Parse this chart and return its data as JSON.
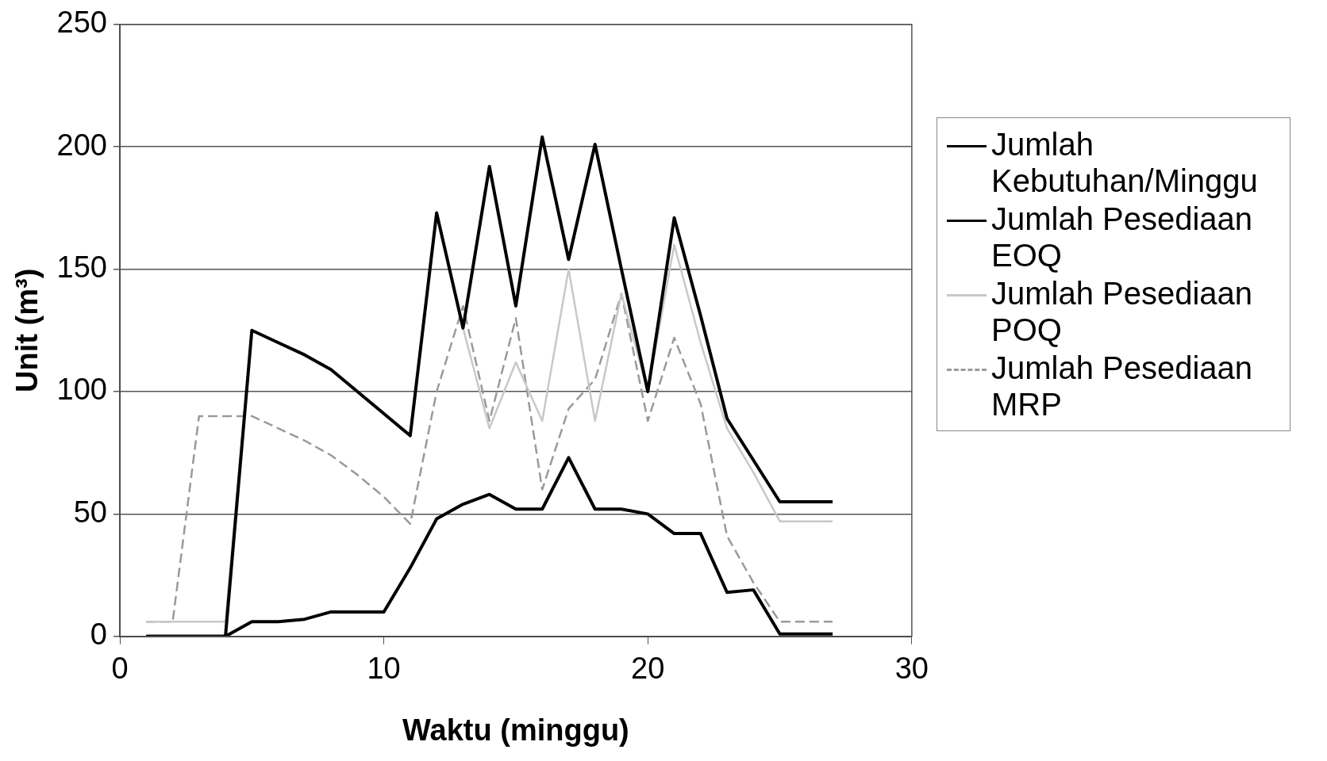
{
  "chart_data": {
    "type": "line",
    "xlabel": "Waktu (minggu)",
    "ylabel": "Unit (m³)",
    "x": [
      1,
      2,
      3,
      4,
      5,
      6,
      7,
      8,
      9,
      10,
      11,
      12,
      13,
      14,
      15,
      16,
      17,
      18,
      19,
      20,
      21,
      22,
      23,
      24,
      25,
      26,
      27
    ],
    "series": [
      {
        "name": "Jumlah Kebutuhan/Minggu",
        "color": "#000000",
        "values": [
          0,
          0,
          0,
          0,
          6,
          6,
          7,
          10,
          10,
          10,
          28,
          48,
          54,
          58,
          52,
          52,
          73,
          52,
          52,
          50,
          42,
          42,
          18,
          19,
          1,
          1,
          1
        ]
      },
      {
        "name": "Jumlah Pesediaan EOQ",
        "color": "#000000",
        "values": [
          0,
          0,
          0,
          0,
          125,
          120,
          115,
          109,
          100,
          91,
          82,
          173,
          126,
          192,
          135,
          204,
          154,
          201,
          150,
          100,
          171,
          131,
          89,
          72,
          55,
          55,
          55
        ]
      },
      {
        "name": "Jumlah Pesediaan POQ",
        "color": "#c8c8c8",
        "values": [
          6,
          6,
          6,
          6,
          125,
          120,
          115,
          109,
          100,
          91,
          82,
          173,
          126,
          85,
          112,
          88,
          150,
          88,
          140,
          100,
          160,
          120,
          85,
          67,
          47,
          47,
          47
        ]
      },
      {
        "name": "Jumlah Pesediaan MRP",
        "color": "#9a9a9a",
        "line_style": "dashed",
        "values": [
          6,
          6,
          90,
          90,
          90,
          85,
          80,
          74,
          66,
          57,
          46,
          100,
          135,
          88,
          130,
          60,
          93,
          105,
          140,
          88,
          122,
          95,
          41,
          22,
          6,
          6,
          6
        ]
      }
    ],
    "xlim": [
      0,
      30
    ],
    "xticks": [
      0,
      10,
      20,
      30
    ],
    "ylim": [
      0,
      250
    ],
    "yticks": [
      0,
      50,
      100,
      150,
      200,
      250
    ],
    "grid": "y",
    "legend": "right",
    "marker": "none",
    "line_style": "solid"
  }
}
